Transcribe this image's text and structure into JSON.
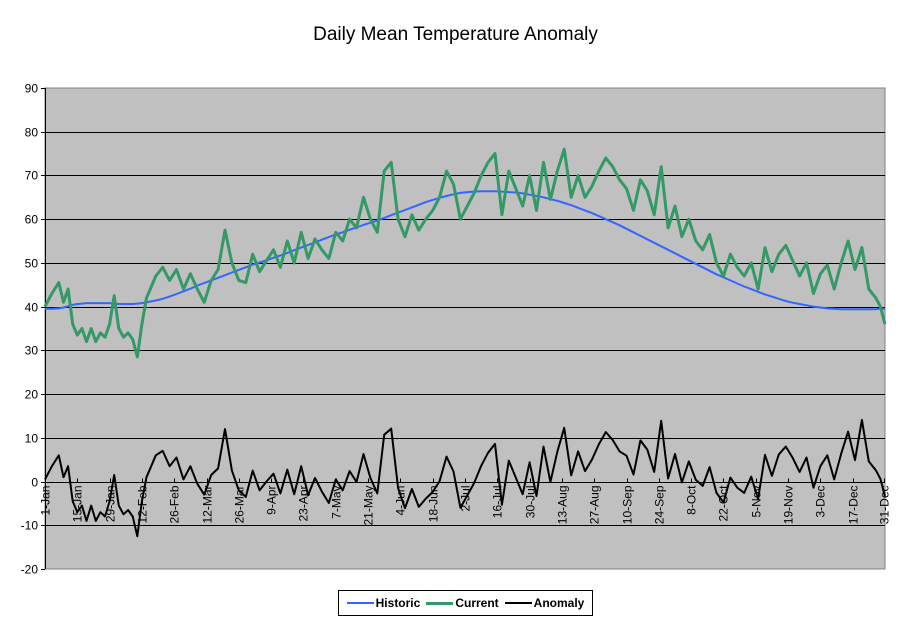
{
  "chart_data": {
    "type": "line",
    "title": "Daily Mean Temperature Anomaly",
    "xlabel": "",
    "ylabel": "",
    "ylim": [
      -20,
      90
    ],
    "yticks": [
      -20,
      -10,
      0,
      10,
      20,
      30,
      40,
      50,
      60,
      70,
      80,
      90
    ],
    "grid": true,
    "legend_position": "bottom",
    "plot_background": "#c0c0c0",
    "x_tick_labels": [
      "1-Jan",
      "15-Jan",
      "29-Jan",
      "12-Feb",
      "26-Feb",
      "12-Mar",
      "26-Mar",
      "9-Apr",
      "23-Apr",
      "7-May",
      "21-May",
      "4-Jun",
      "18-Jun",
      "2-Jul",
      "16-Jul",
      "30-Jul",
      "13-Aug",
      "27-Aug",
      "10-Sep",
      "24-Sep",
      "8-Oct",
      "22-Oct",
      "5-Nov",
      "19-Nov",
      "3-Dec",
      "17-Dec",
      "31-Dec"
    ],
    "x_days_per_tick": 14,
    "x_days_total": 365,
    "sample_days": [
      1,
      4,
      7,
      9,
      11,
      13,
      15,
      17,
      19,
      21,
      23,
      25,
      27,
      29,
      31,
      33,
      35,
      37,
      39,
      41,
      43,
      45,
      47,
      49,
      52,
      55,
      58,
      61,
      64,
      67,
      70,
      73,
      76,
      79,
      82,
      85,
      88,
      91,
      94,
      97,
      100,
      103,
      106,
      109,
      112,
      115,
      118,
      121,
      124,
      127,
      130,
      133,
      136,
      139,
      142,
      145,
      148,
      151,
      154,
      157,
      160,
      163,
      166,
      169,
      172,
      175,
      178,
      181,
      184,
      187,
      190,
      193,
      196,
      199,
      202,
      205,
      208,
      211,
      214,
      217,
      220,
      223,
      226,
      229,
      232,
      235,
      238,
      241,
      244,
      247,
      250,
      253,
      256,
      259,
      262,
      265,
      268,
      271,
      274,
      277,
      280,
      283,
      286,
      289,
      292,
      295,
      298,
      301,
      304,
      307,
      310,
      313,
      316,
      319,
      322,
      325,
      328,
      331,
      334,
      337,
      340,
      343,
      346,
      349,
      352,
      355,
      358,
      361,
      363,
      365
    ],
    "series": [
      {
        "name": "Historic",
        "color": "#3366ff",
        "values": [
          39.5,
          39.5,
          39.6,
          39.8,
          40.1,
          40.4,
          40.6,
          40.7,
          40.8,
          40.8,
          40.8,
          40.8,
          40.8,
          40.8,
          40.7,
          40.6,
          40.6,
          40.6,
          40.6,
          40.7,
          40.8,
          41.0,
          41.2,
          41.4,
          41.8,
          42.3,
          42.9,
          43.5,
          44.1,
          44.8,
          45.4,
          46.0,
          46.6,
          47.2,
          47.8,
          48.4,
          49.0,
          49.6,
          50.1,
          50.6,
          51.2,
          51.7,
          52.3,
          52.9,
          53.5,
          54.1,
          54.7,
          55.3,
          55.9,
          56.5,
          57.0,
          57.6,
          58.1,
          58.7,
          59.2,
          59.7,
          60.3,
          60.9,
          61.5,
          62.1,
          62.7,
          63.3,
          63.9,
          64.4,
          64.9,
          65.3,
          65.7,
          66.0,
          66.2,
          66.3,
          66.4,
          66.4,
          66.4,
          66.3,
          66.2,
          66.1,
          65.9,
          65.6,
          65.3,
          65.0,
          64.6,
          64.2,
          63.7,
          63.2,
          62.6,
          62.0,
          61.4,
          60.7,
          60.0,
          59.3,
          58.6,
          57.8,
          57.0,
          56.2,
          55.4,
          54.6,
          53.8,
          53.0,
          52.2,
          51.4,
          50.6,
          49.8,
          49.0,
          48.2,
          47.4,
          46.7,
          46.0,
          45.3,
          44.6,
          44.0,
          43.4,
          42.8,
          42.3,
          41.8,
          41.3,
          40.9,
          40.6,
          40.3,
          40.0,
          39.8,
          39.6,
          39.5,
          39.4,
          39.4,
          39.4,
          39.4,
          39.4,
          39.4,
          39.5,
          39.5
        ]
      },
      {
        "name": "Current",
        "color": "#339966",
        "values": [
          40.0,
          43.0,
          45.5,
          41.0,
          44.0,
          36.0,
          33.5,
          35.0,
          32.0,
          35.0,
          32.0,
          34.0,
          33.0,
          36.0,
          42.5,
          35.0,
          33.0,
          34.0,
          32.5,
          28.5,
          36.0,
          42.0,
          44.5,
          47.0,
          49.0,
          46.0,
          48.5,
          44.0,
          47.5,
          44.0,
          41.0,
          46.0,
          48.5,
          57.5,
          50.0,
          46.0,
          45.5,
          52.0,
          48.0,
          50.5,
          53.0,
          49.0,
          55.0,
          50.0,
          57.0,
          51.0,
          55.5,
          53.0,
          51.0,
          57.0,
          55.0,
          60.0,
          58.0,
          65.0,
          60.0,
          57.0,
          71.0,
          73.0,
          60.0,
          56.0,
          61.0,
          57.5,
          60.0,
          62.0,
          65.0,
          71.0,
          68.0,
          60.0,
          63.0,
          66.0,
          70.0,
          73.0,
          75.0,
          61.0,
          71.0,
          67.0,
          63.0,
          70.0,
          62.0,
          73.0,
          64.5,
          71.0,
          76.0,
          65.0,
          70.0,
          65.0,
          67.5,
          71.0,
          74.0,
          72.0,
          69.0,
          67.0,
          62.0,
          69.0,
          66.5,
          61.0,
          72.0,
          58.0,
          63.0,
          56.0,
          60.0,
          55.0,
          53.0,
          56.5,
          50.0,
          47.0,
          52.0,
          49.0,
          47.0,
          50.0,
          44.0,
          53.5,
          48.0,
          52.0,
          54.0,
          50.5,
          47.0,
          50.0,
          43.0,
          47.5,
          49.5,
          44.0,
          50.0,
          55.0,
          48.5,
          53.5,
          44.0,
          42.0,
          40.0,
          36.0,
          37.5,
          33.5
        ]
      },
      {
        "name": "Anomaly",
        "color": "#000000",
        "values": [
          0.5,
          3.5,
          6.0,
          1.0,
          3.5,
          -4.5,
          -7.0,
          -5.5,
          -9.0,
          -5.5,
          -9.0,
          -7.0,
          -8.0,
          -4.5,
          1.5,
          -5.5,
          -7.5,
          -6.5,
          -8.0,
          -12.5,
          -4.5,
          1.0,
          3.5,
          6.0,
          7.0,
          3.5,
          5.5,
          0.5,
          3.5,
          -0.5,
          -3.0,
          1.5,
          3.0,
          12.0,
          2.5,
          -2.0,
          -3.5,
          2.5,
          -2.0,
          0.0,
          1.8,
          -2.7,
          2.7,
          -2.9,
          3.5,
          -3.1,
          0.8,
          -2.3,
          -4.9,
          0.5,
          -2.0,
          2.4,
          -0.1,
          6.3,
          0.8,
          -2.7,
          10.7,
          12.1,
          -1.5,
          -6.1,
          -1.7,
          -5.8,
          -3.9,
          -2.4,
          0.1,
          5.7,
          2.3,
          -6.0,
          -3.2,
          -0.3,
          3.6,
          6.6,
          8.6,
          -5.3,
          4.8,
          0.9,
          -2.9,
          4.4,
          -3.3,
          8.0,
          -0.1,
          6.8,
          12.3,
          1.4,
          6.9,
          2.4,
          5.0,
          8.5,
          11.3,
          9.5,
          6.9,
          5.9,
          1.6,
          9.4,
          7.3,
          2.2,
          13.9,
          0.7,
          6.3,
          -0.2,
          4.6,
          0.4,
          -1.0,
          3.3,
          -2.6,
          -4.8,
          0.9,
          -1.4,
          -2.6,
          1.1,
          -4.0,
          6.1,
          1.3,
          6.2,
          8.0,
          5.4,
          2.2,
          5.5,
          -1.4,
          3.5,
          6.0,
          0.5,
          6.4,
          11.4,
          4.9,
          14.1,
          4.6,
          2.6,
          0.6,
          -3.4,
          -1.9,
          -6.0
        ]
      }
    ]
  },
  "legend": {
    "items": [
      {
        "label": "Historic",
        "color": "#3366ff"
      },
      {
        "label": "Current",
        "color": "#339966"
      },
      {
        "label": "Anomaly",
        "color": "#000000"
      }
    ]
  }
}
